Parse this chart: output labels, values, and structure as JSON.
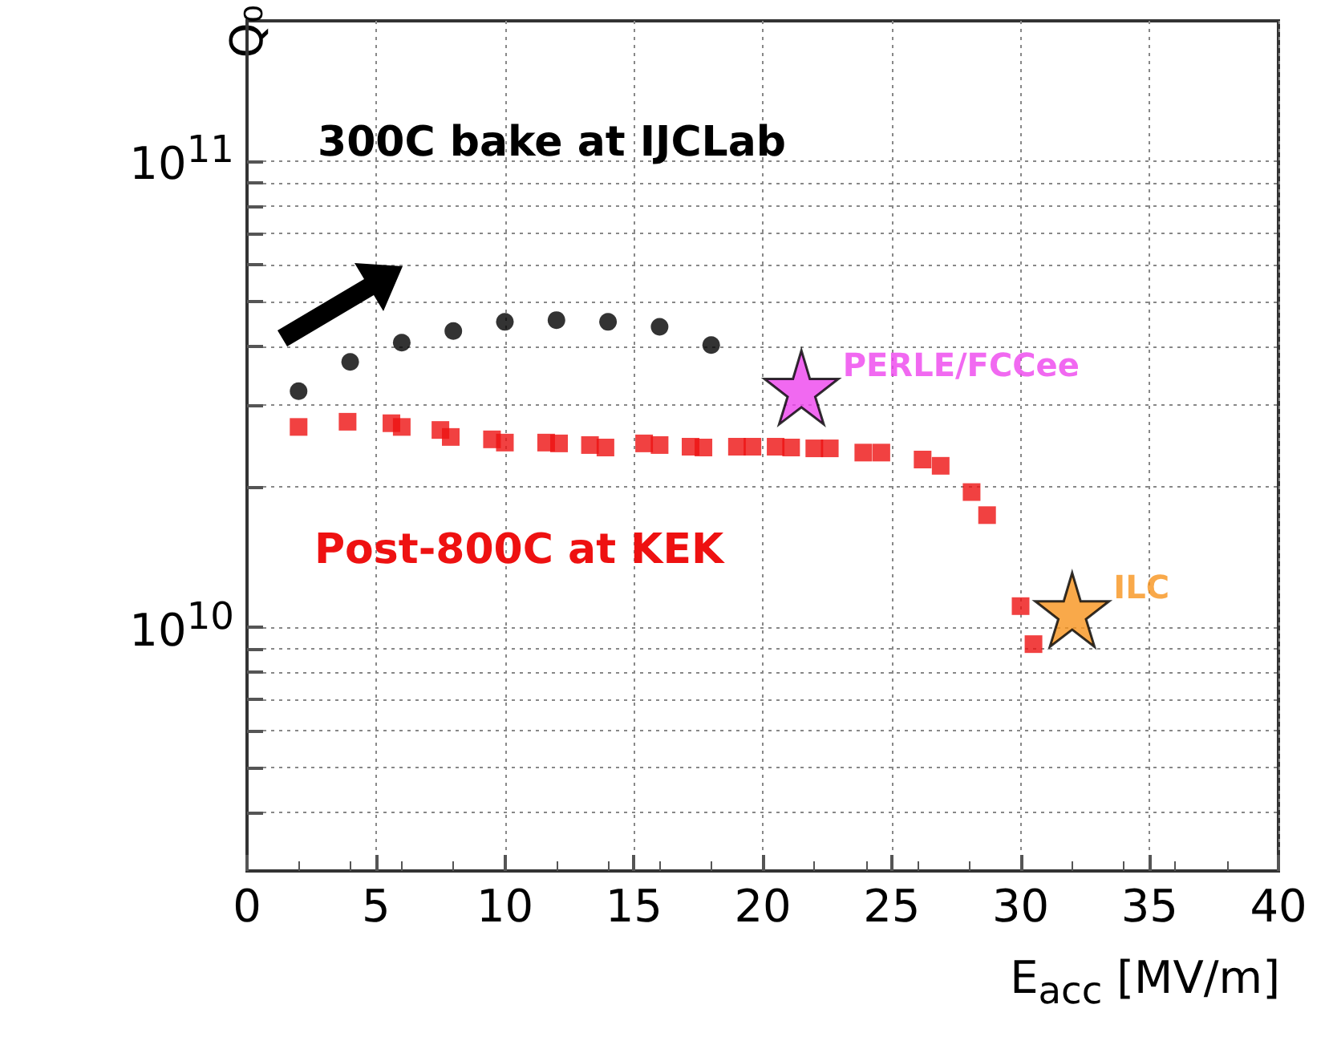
{
  "chart_data": {
    "type": "scatter",
    "xlabel": "E$_{acc}$ [MV/m]",
    "ylabel": "Q₀",
    "xlim": [
      0,
      40
    ],
    "xticks": [
      0,
      5,
      10,
      15,
      20,
      25,
      30,
      35,
      40
    ],
    "ylim": [
      3000000000,
      200000000000
    ],
    "log": "y",
    "grid": true,
    "legend": false,
    "yticks": [
      {
        "value": 4000000000,
        "label": null
      },
      {
        "value": 5000000000,
        "label": null
      },
      {
        "value": 6000000000,
        "label": null
      },
      {
        "value": 7000000000,
        "label": null
      },
      {
        "value": 8000000000,
        "label": null
      },
      {
        "value": 9000000000,
        "label": null
      },
      {
        "value": 10000000000,
        "label": "10$^{10}$"
      },
      {
        "value": 20000000000,
        "label": null
      },
      {
        "value": 30000000000,
        "label": null
      },
      {
        "value": 40000000000,
        "label": null
      },
      {
        "value": 50000000000,
        "label": null
      },
      {
        "value": 60000000000,
        "label": null
      },
      {
        "value": 70000000000,
        "label": null
      },
      {
        "value": 80000000000,
        "label": null
      },
      {
        "value": 90000000000,
        "label": null
      },
      {
        "value": 100000000000,
        "label": "10$^{11}$"
      }
    ],
    "series": [
      {
        "name": "300C bake at IJCLab",
        "color": "#000000",
        "marker": "circle",
        "x": [
          2,
          4,
          6,
          8,
          10,
          12,
          14,
          16,
          18
        ],
        "values": [
          32100000000,
          37100000000,
          40800000000,
          43200000000,
          45200000000,
          45600000000,
          45200000000,
          44100000000,
          40300000000
        ]
      },
      {
        "name": "Post-800C at KEK",
        "color": "#ee1111",
        "marker": "square",
        "x": [
          2,
          3.9,
          5.6,
          6,
          7.5,
          7.9,
          9.5,
          10,
          11.6,
          12.1,
          13.3,
          13.9,
          15.4,
          16,
          17.2,
          17.7,
          19,
          19.6,
          20.5,
          21.1,
          22,
          22.6,
          23.9,
          24.6,
          26.2,
          26.9,
          28.1,
          28.7,
          30,
          30.5
        ],
        "values": [
          26900000000,
          27600000000,
          27400000000,
          26900000000,
          26500000000,
          25600000000,
          25300000000,
          24900000000,
          24900000000,
          24800000000,
          24600000000,
          24300000000,
          24800000000,
          24600000000,
          24400000000,
          24300000000,
          24400000000,
          24400000000,
          24400000000,
          24300000000,
          24200000000,
          24200000000,
          23700000000,
          23700000000,
          22900000000,
          22200000000,
          19500000000,
          17400000000,
          11100000000,
          9200000000
        ]
      },
      {
        "name": "PERLE/FCCee",
        "color": "#ee44ee",
        "marker": "star",
        "x": [
          21.5
        ],
        "values": [
          32700000000
        ]
      },
      {
        "name": "ILC",
        "color": "#f7941d",
        "marker": "star",
        "x": [
          32
        ],
        "values": [
          10900000000
        ]
      }
    ]
  }
}
